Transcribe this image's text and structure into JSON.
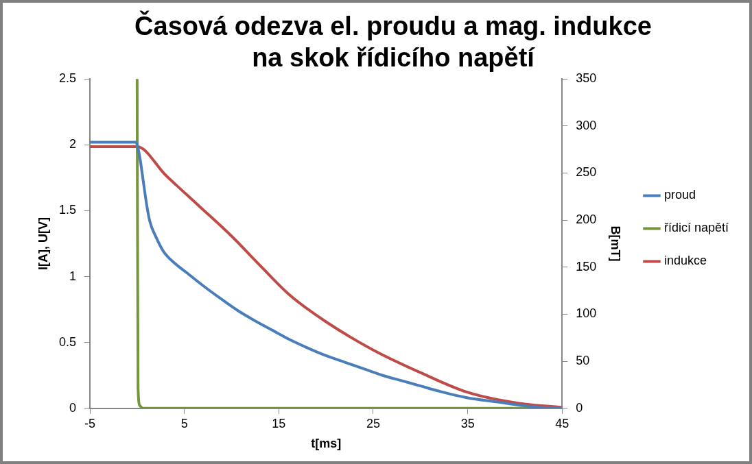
{
  "chart_data": {
    "type": "line",
    "title": "Časová odezva el. proudu a mag. indukce na skok řídicího napětí",
    "xlabel": "t[ms]",
    "ylabel": "I[A], U[V]",
    "y2label": "B[mT]",
    "xlim": [
      -5,
      45
    ],
    "xticks": [
      -5,
      5,
      15,
      25,
      35,
      45
    ],
    "ylim": [
      0,
      2.5
    ],
    "yticks": [
      0,
      0.5,
      1,
      1.5,
      2,
      2.5
    ],
    "y2lim": [
      0,
      350
    ],
    "y2ticks": [
      0,
      50,
      100,
      150,
      200,
      250,
      300,
      350
    ],
    "grid": false,
    "legend": "right",
    "marker": "none",
    "line_style": "solid",
    "series": [
      {
        "name": "proud",
        "color": "#4a7ebb",
        "x": [
          -5,
          -0.1,
          0,
          0.3,
          0.6,
          1,
          1.34,
          2,
          2.8,
          4,
          5.24,
          7,
          8.9,
          10.7,
          12.6,
          14.4,
          16.2,
          18,
          20,
          22,
          24,
          26,
          28,
          30,
          32,
          35,
          38,
          41,
          43,
          45
        ],
        "values": [
          2.02,
          2.02,
          2.0,
          1.9,
          1.75,
          1.55,
          1.42,
          1.3,
          1.19,
          1.1,
          1.03,
          0.93,
          0.83,
          0.74,
          0.66,
          0.59,
          0.52,
          0.46,
          0.4,
          0.35,
          0.3,
          0.25,
          0.21,
          0.17,
          0.13,
          0.08,
          0.05,
          0.02,
          0.005,
          0
        ]
      },
      {
        "name": "řídicí napětí",
        "color": "#76953c",
        "x": [
          0,
          0.1,
          0.3,
          0.6,
          45
        ],
        "values": [
          2.5,
          0.15,
          0.02,
          0,
          0
        ]
      },
      {
        "name": "indukce",
        "color": "#be4b48",
        "axis": "y2",
        "x": [
          -5,
          0,
          3,
          6.45,
          10,
          13,
          16.2,
          20,
          25,
          30,
          35,
          40,
          45
        ],
        "values": [
          278,
          278,
          248,
          216,
          183,
          152,
          120,
          92,
          62,
          38,
          17,
          6,
          1
        ]
      }
    ]
  }
}
